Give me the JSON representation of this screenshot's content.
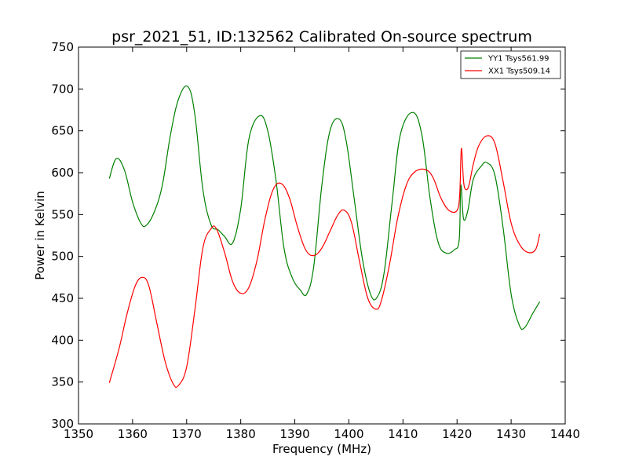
{
  "chart_data": {
    "type": "line",
    "title": "psr_2021_51, ID:132562 Calibrated On-source spectrum",
    "xlabel": "Frequency (MHz)",
    "ylabel": "Power in Kelvin",
    "xlim": [
      1350,
      1440
    ],
    "ylim": [
      300,
      750
    ],
    "xticks": [
      1350,
      1360,
      1370,
      1380,
      1390,
      1400,
      1410,
      1420,
      1430,
      1440
    ],
    "yticks": [
      300,
      350,
      400,
      450,
      500,
      550,
      600,
      650,
      700,
      750
    ],
    "grid": false,
    "legend_position": "top-right",
    "series": [
      {
        "name": "YY1 Tsys561.99",
        "color": "#008000",
        "x": [
          1355.7,
          1357.0,
          1358.5,
          1360.0,
          1361.5,
          1362.5,
          1364.0,
          1365.5,
          1367.0,
          1368.5,
          1370.2,
          1371.5,
          1373.0,
          1374.5,
          1375.8,
          1377.0,
          1378.5,
          1380.0,
          1381.5,
          1383.5,
          1385.0,
          1386.5,
          1388.0,
          1389.5,
          1391.0,
          1392.2,
          1393.5,
          1395.0,
          1396.5,
          1398.2,
          1399.5,
          1401.0,
          1402.5,
          1404.0,
          1405.2,
          1406.5,
          1408.0,
          1409.5,
          1411.8,
          1413.5,
          1415.0,
          1416.5,
          1418.0,
          1419.5,
          1420.4,
          1420.7,
          1421.2,
          1422.0,
          1423.0,
          1424.5,
          1425.5,
          1427.0,
          1428.5,
          1430.0,
          1431.5,
          1432.5,
          1434.0,
          1435.3
        ],
        "values": [
          593,
          617,
          603,
          565,
          540,
          537,
          553,
          585,
          645,
          688,
          703,
          670,
          580,
          538,
          532,
          524,
          516,
          557,
          640,
          668,
          650,
          592,
          510,
          475,
          460,
          455,
          488,
          585,
          650,
          664,
          638,
          568,
          497,
          455,
          451,
          480,
          565,
          645,
          672,
          645,
          570,
          517,
          504,
          508,
          520,
          585,
          545,
          555,
          592,
          608,
          612,
          597,
          535,
          455,
          418,
          415,
          432,
          446
        ]
      },
      {
        "name": "XX1 Tsys509.14",
        "color": "#ff0000",
        "x": [
          1355.7,
          1357.5,
          1359.0,
          1360.5,
          1361.8,
          1363.0,
          1364.5,
          1366.0,
          1367.5,
          1368.5,
          1370.0,
          1371.5,
          1373.0,
          1374.5,
          1375.5,
          1377.0,
          1378.5,
          1380.0,
          1381.5,
          1383.0,
          1384.5,
          1386.0,
          1387.5,
          1389.0,
          1390.5,
          1392.0,
          1393.5,
          1395.0,
          1396.5,
          1398.0,
          1399.2,
          1400.5,
          1402.0,
          1403.5,
          1405.0,
          1406.0,
          1407.5,
          1409.0,
          1410.5,
          1412.0,
          1414.0,
          1415.5,
          1417.0,
          1418.5,
          1420.0,
          1420.5,
          1420.8,
          1421.2,
          1421.6,
          1422.2,
          1423.0,
          1424.0,
          1425.5,
          1427.0,
          1428.5,
          1430.0,
          1431.5,
          1433.0,
          1434.5,
          1435.3
        ],
        "values": [
          349,
          390,
          432,
          465,
          475,
          465,
          420,
          375,
          348,
          346,
          368,
          435,
          510,
          533,
          533,
          505,
          470,
          456,
          463,
          495,
          545,
          580,
          587,
          570,
          535,
          508,
          501,
          510,
          530,
          550,
          555,
          540,
          493,
          450,
          437,
          447,
          490,
          545,
          583,
          600,
          604,
          595,
          570,
          555,
          555,
          575,
          629,
          590,
          580,
          585,
          610,
          632,
          644,
          635,
          590,
          540,
          515,
          505,
          508,
          527
        ]
      }
    ]
  }
}
